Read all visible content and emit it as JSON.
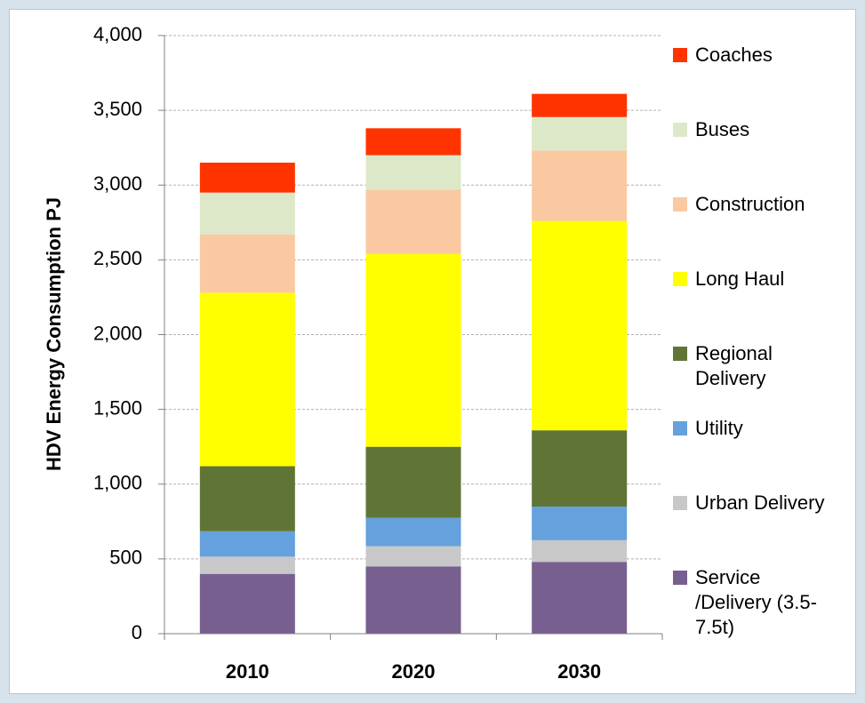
{
  "chart_data": {
    "type": "stacked_bar",
    "y_label": "HDV Energy Consumption PJ",
    "categories": [
      "2010",
      "2020",
      "2030"
    ],
    "series": [
      {
        "name": "Service /Delivery (3.5-7.5t)",
        "color": "#77608f",
        "values": [
          400,
          450,
          480
        ]
      },
      {
        "name": "Urban Delivery",
        "color": "#c8c8c8",
        "values": [
          115,
          135,
          145
        ]
      },
      {
        "name": "Utility",
        "color": "#65a1dc",
        "values": [
          170,
          190,
          225
        ]
      },
      {
        "name": "Regional Delivery",
        "color": "#607535",
        "values": [
          435,
          475,
          510
        ]
      },
      {
        "name": "Long Haul",
        "color": "#ffff00",
        "values": [
          1160,
          1290,
          1400
        ]
      },
      {
        "name": "Construction",
        "color": "#fac9a1",
        "values": [
          390,
          430,
          470
        ]
      },
      {
        "name": "Buses",
        "color": "#dde8c9",
        "values": [
          280,
          230,
          225
        ]
      },
      {
        "name": "Coaches",
        "color": "#ff3300",
        "values": [
          200,
          180,
          155
        ]
      }
    ],
    "ylim": [
      0,
      4000
    ],
    "yticks": [
      0,
      500,
      {
        "value": 1000,
        "label": "1,000"
      },
      {
        "value": 1500,
        "label": "1,500"
      },
      {
        "value": 2000,
        "label": "2,000"
      },
      {
        "value": 2500,
        "label": "2,500"
      },
      {
        "value": 3000,
        "label": "3,000"
      },
      {
        "value": 3500,
        "label": "3,500"
      },
      {
        "value": 4000,
        "label": "4,000"
      }
    ],
    "grid": true
  }
}
